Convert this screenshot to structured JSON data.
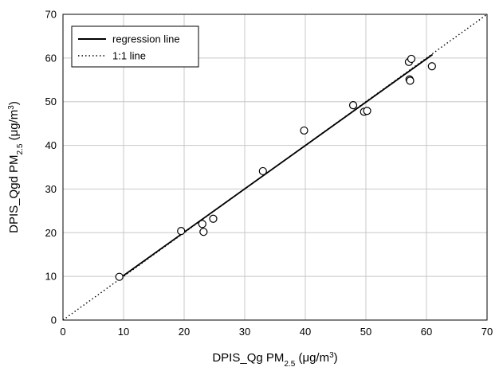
{
  "chart_data": {
    "type": "scatter",
    "xlabel": {
      "main": "DPIS_Qg PM",
      "sub": "2.5",
      "unit_open": " (μg/m",
      "unit_sup": "3",
      "unit_close": ")"
    },
    "ylabel": {
      "main": "DPIS_Qgd PM",
      "sub": "2.5",
      "unit_open": " (μg/m",
      "unit_sup": "3",
      "unit_close": ")"
    },
    "xlim": [
      0,
      70
    ],
    "ylim": [
      0,
      70
    ],
    "xticks": [
      0,
      10,
      20,
      30,
      40,
      50,
      60,
      70
    ],
    "yticks": [
      0,
      10,
      20,
      30,
      40,
      50,
      60,
      70
    ],
    "grid": true,
    "legend_position": "top-left",
    "legend": [
      {
        "label": "regression line",
        "style": "solid"
      },
      {
        "label": "1:1 line",
        "style": "dotted"
      }
    ],
    "points": [
      {
        "x": 9.3,
        "y": 9.9
      },
      {
        "x": 19.5,
        "y": 20.4
      },
      {
        "x": 23.0,
        "y": 22.0
      },
      {
        "x": 23.2,
        "y": 20.2
      },
      {
        "x": 24.8,
        "y": 23.2
      },
      {
        "x": 33.0,
        "y": 34.1
      },
      {
        "x": 39.8,
        "y": 43.4
      },
      {
        "x": 47.9,
        "y": 49.2
      },
      {
        "x": 49.7,
        "y": 47.7
      },
      {
        "x": 50.2,
        "y": 47.9
      },
      {
        "x": 57.1,
        "y": 59.1
      },
      {
        "x": 57.5,
        "y": 59.8
      },
      {
        "x": 57.2,
        "y": 55.1
      },
      {
        "x": 57.3,
        "y": 54.8
      },
      {
        "x": 60.9,
        "y": 58.1
      }
    ],
    "regression_line": {
      "x": [
        9.3,
        61.0
      ],
      "y": [
        9.5,
        60.8
      ]
    },
    "identity_line": {
      "x": [
        0,
        70
      ],
      "y": [
        0,
        70
      ]
    }
  }
}
